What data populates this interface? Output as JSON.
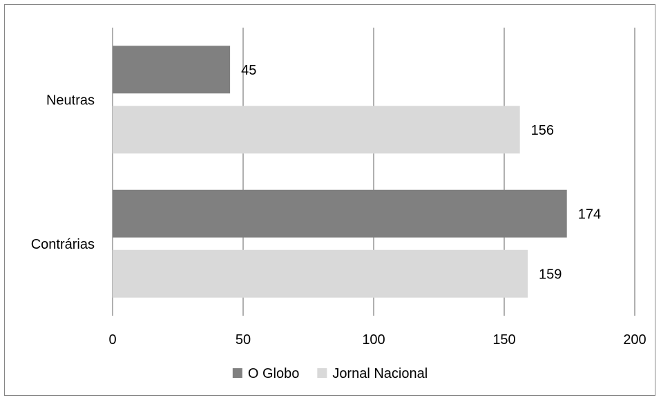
{
  "chart_data": {
    "type": "bar",
    "orientation": "horizontal",
    "title": "",
    "xlabel": "",
    "ylabel": "",
    "categories": [
      "Neutras",
      "Contrárias"
    ],
    "series": [
      {
        "name": "O Globo",
        "color": "#808080",
        "values": [
          45,
          174
        ]
      },
      {
        "name": "Jornal Nacional",
        "color": "#d9d9d9",
        "values": [
          156,
          159
        ]
      }
    ],
    "xlim": [
      0,
      200
    ],
    "xticks": [
      0,
      50,
      100,
      150,
      200
    ],
    "grid": "vertical",
    "legend": "bottom",
    "data_labels": true
  }
}
